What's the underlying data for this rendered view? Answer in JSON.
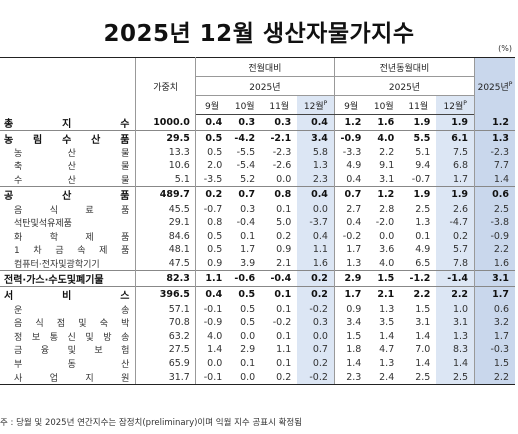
{
  "title": "2025년 12월  생산자물가지수",
  "unit": "(%)",
  "headers": {
    "weight": "가중치",
    "mom_group": "전월대비",
    "mom_year": "2025년",
    "yoy_group": "전년동월대비",
    "yoy_year": "2025년",
    "annual": "2025년",
    "annual_sup": "P",
    "dec_sup": "P",
    "months": [
      "9월",
      "10월",
      "11월",
      "12월"
    ]
  },
  "rows": [
    {
      "name": "총  지  수",
      "level": "major",
      "weight": "1000.0",
      "mom": [
        "0.4",
        "0.3",
        "0.3",
        "0.4"
      ],
      "yoy": [
        "1.2",
        "1.6",
        "1.9",
        "1.9"
      ],
      "annual": "1.2"
    },
    {
      "name": "농 림 수 산 품",
      "level": "major",
      "weight": "29.5",
      "mom": [
        "0.5",
        "-4.2",
        "-2.1",
        "3.4"
      ],
      "yoy": [
        "-0.9",
        "4.0",
        "5.5",
        "6.1"
      ],
      "annual": "1.3"
    },
    {
      "name": "농      산      물",
      "level": "sub",
      "weight": "13.3",
      "mom": [
        "0.5",
        "-5.5",
        "-2.3",
        "5.8"
      ],
      "yoy": [
        "-3.3",
        "2.2",
        "5.1",
        "7.5"
      ],
      "annual": "-2.3"
    },
    {
      "name": "축      산      물",
      "level": "sub",
      "weight": "10.6",
      "mom": [
        "2.0",
        "-5.4",
        "-2.6",
        "1.3"
      ],
      "yoy": [
        "4.9",
        "9.1",
        "9.4",
        "6.8"
      ],
      "annual": "7.7"
    },
    {
      "name": "수      산      물",
      "level": "sub",
      "weight": "5.1",
      "mom": [
        "-3.5",
        "5.2",
        "0.0",
        "2.3"
      ],
      "yoy": [
        "0.4",
        "3.1",
        "-0.7",
        "1.7"
      ],
      "annual": "1.4"
    },
    {
      "name": "공      산      품",
      "level": "major",
      "weight": "489.7",
      "mom": [
        "0.2",
        "0.7",
        "0.8",
        "0.4"
      ],
      "yoy": [
        "0.7",
        "1.2",
        "1.9",
        "1.9"
      ],
      "annual": "0.6"
    },
    {
      "name": "음 식 료 품",
      "level": "sub",
      "weight": "45.5",
      "mom": [
        "-0.7",
        "0.3",
        "0.1",
        "0.0"
      ],
      "yoy": [
        "2.7",
        "2.8",
        "2.5",
        "2.6"
      ],
      "annual": "2.5"
    },
    {
      "name": "석탄및석유제품",
      "level": "sub",
      "weight": "29.1",
      "mom": [
        "0.8",
        "-0.4",
        "5.0",
        "-3.7"
      ],
      "yoy": [
        "0.4",
        "-2.0",
        "1.3",
        "-4.7"
      ],
      "annual": "-3.8"
    },
    {
      "name": "화 학 제 품",
      "level": "sub",
      "weight": "84.6",
      "mom": [
        "0.5",
        "0.1",
        "0.2",
        "0.4"
      ],
      "yoy": [
        "-0.2",
        "0.0",
        "0.1",
        "0.2"
      ],
      "annual": "-0.9"
    },
    {
      "name": "1 차 금 속 제 품",
      "level": "sub",
      "weight": "48.1",
      "mom": [
        "0.5",
        "1.7",
        "0.9",
        "1.1"
      ],
      "yoy": [
        "1.7",
        "3.6",
        "4.9",
        "5.7"
      ],
      "annual": "2.2"
    },
    {
      "name": "컴퓨터·전자및광학기기",
      "level": "sub",
      "weight": "47.5",
      "mom": [
        "0.9",
        "3.9",
        "2.1",
        "1.6"
      ],
      "yoy": [
        "1.3",
        "4.0",
        "6.5",
        "7.8"
      ],
      "annual": "1.6"
    },
    {
      "name": "전력·가스·수도및폐기물",
      "level": "major",
      "weight": "82.3",
      "mom": [
        "1.1",
        "-0.6",
        "-0.4",
        "0.2"
      ],
      "yoy": [
        "2.9",
        "1.5",
        "-1.2",
        "-1.4"
      ],
      "annual": "3.1"
    },
    {
      "name": "서      비      스",
      "level": "major",
      "weight": "396.5",
      "mom": [
        "0.4",
        "0.5",
        "0.1",
        "0.2"
      ],
      "yoy": [
        "1.7",
        "2.1",
        "2.2",
        "2.2"
      ],
      "annual": "1.7"
    },
    {
      "name": "운                  송",
      "level": "sub",
      "weight": "57.1",
      "mom": [
        "-0.1",
        "0.5",
        "0.1",
        "-0.2"
      ],
      "yoy": [
        "0.9",
        "1.3",
        "1.5",
        "1.0"
      ],
      "annual": "0.6"
    },
    {
      "name": "음 식 점 및 숙 박",
      "level": "sub",
      "weight": "70.8",
      "mom": [
        "-0.9",
        "0.5",
        "-0.2",
        "0.3"
      ],
      "yoy": [
        "3.4",
        "3.5",
        "3.1",
        "3.1"
      ],
      "annual": "3.2"
    },
    {
      "name": "정 보 통 신 및 방 송",
      "level": "sub",
      "weight": "63.2",
      "mom": [
        "4.0",
        "0.0",
        "0.1",
        "0.0"
      ],
      "yoy": [
        "1.5",
        "1.4",
        "1.4",
        "1.3"
      ],
      "annual": "1.7"
    },
    {
      "name": "금 융 및 보 험",
      "level": "sub",
      "weight": "27.5",
      "mom": [
        "1.4",
        "2.9",
        "1.1",
        "0.7"
      ],
      "yoy": [
        "1.8",
        "4.7",
        "7.0",
        "8.3"
      ],
      "annual": "-0.3"
    },
    {
      "name": "부      동      산",
      "level": "sub",
      "weight": "65.9",
      "mom": [
        "0.0",
        "0.1",
        "0.1",
        "0.2"
      ],
      "yoy": [
        "1.4",
        "1.3",
        "1.4",
        "1.4"
      ],
      "annual": "1.5"
    },
    {
      "name": "사  업  지  원",
      "level": "sub",
      "weight": "31.7",
      "mom": [
        "-0.1",
        "0.0",
        "0.2",
        "-0.2"
      ],
      "yoy": [
        "2.3",
        "2.4",
        "2.5",
        "2.5"
      ],
      "annual": "2.2"
    }
  ],
  "note": "주 : 당월 및 2025년 연간지수는 잠정치(preliminary)이며 익월 지수 공표시 확정됨"
}
